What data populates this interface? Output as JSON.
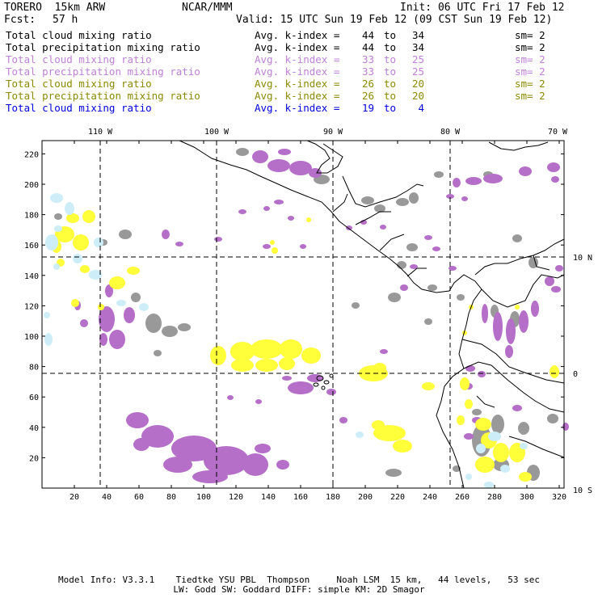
{
  "header": {
    "model": "TORERO  15km ARW",
    "org": "NCAR/MMM",
    "init": "Init: 06 UTC Fri 17 Feb 12",
    "fcst_label": "Fcst:",
    "fcst_value": "57 h",
    "valid": "Valid: 15 UTC Sun 19 Feb 12 (09 CST Sun 19 Feb 12)"
  },
  "legend": [
    {
      "field": "Total cloud mixing ratio",
      "avg": "Avg. k-index =",
      "k_from": "44",
      "to": "to",
      "k_to": "34",
      "sm": "sm= 2",
      "color": "#000000"
    },
    {
      "field": "Total precipitation mixing ratio",
      "avg": "Avg. k-index =",
      "k_from": "44",
      "to": "to",
      "k_to": "34",
      "sm": "sm= 2",
      "color": "#000000"
    },
    {
      "field": "Total cloud mixing ratio",
      "avg": "Avg. k-index =",
      "k_from": "33",
      "to": "to",
      "k_to": "25",
      "sm": "sm= 2",
      "color": "#c080d8"
    },
    {
      "field": "Total precipitation mixing ratio",
      "avg": "Avg. k-index =",
      "k_from": "33",
      "to": "to",
      "k_to": "25",
      "sm": "sm= 2",
      "color": "#c080d8"
    },
    {
      "field": "Total cloud mixing ratio",
      "avg": "Avg. k-index =",
      "k_from": "26",
      "to": "to",
      "k_to": "20",
      "sm": "sm= 2",
      "color": "#8a8a00"
    },
    {
      "field": "Total precipitation mixing ratio",
      "avg": "Avg. k-index =",
      "k_from": "26",
      "to": "to",
      "k_to": "20",
      "sm": "sm= 2",
      "color": "#8a8a00"
    },
    {
      "field": "Total cloud mixing ratio",
      "avg": "Avg. k-index =",
      "k_from": "19",
      "to": "to",
      "k_to": "4",
      "sm": "",
      "color": "#0000dd"
    }
  ],
  "map": {
    "lon_labels": [
      "110 W",
      "100 W",
      "90 W",
      "80 W",
      "70 W"
    ],
    "lat_labels": [
      "10 N",
      "0",
      "10 S"
    ],
    "x_ticks": [
      "20",
      "40",
      "60",
      "80",
      "100",
      "120",
      "140",
      "160",
      "180",
      "200",
      "220",
      "240",
      "260",
      "280",
      "300",
      "320"
    ],
    "y_ticks": [
      "220",
      "200",
      "180",
      "160",
      "140",
      "120",
      "100",
      "80",
      "60",
      "40",
      "20"
    ],
    "colors": {
      "gray": "#999999",
      "purple": "#b56fc8",
      "yellow": "#ffff3a",
      "lightblue": "#cdeef8",
      "coast": "#000000"
    }
  },
  "footer": {
    "line1": "Model Info: V3.3.1    Tiedtke YSU PBL  Thompson     Noah LSM  15 km,   44 levels,   53 sec",
    "line2": "LW: Godd SW: Goddard DIFF: simple KM: 2D Smagor"
  }
}
